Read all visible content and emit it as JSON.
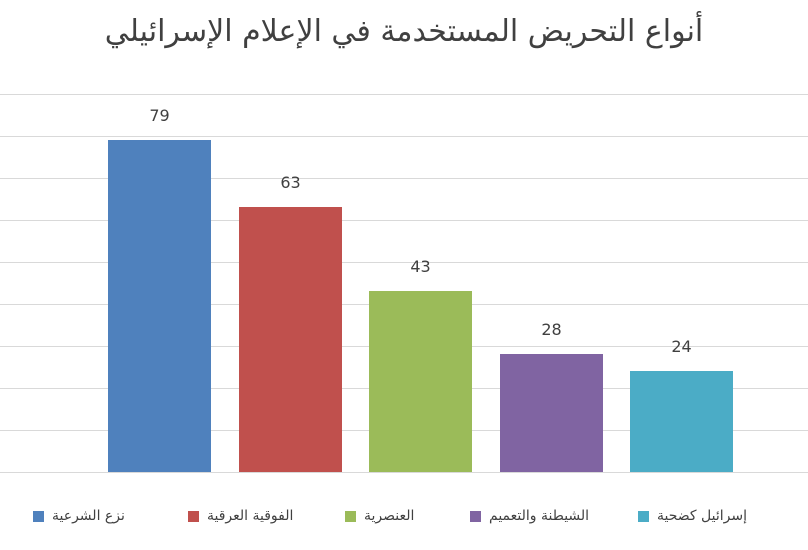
{
  "chart_data": {
    "type": "bar",
    "title": "أنواع التحريض المستخدمة في الإعلام الإسرائيلي",
    "xlabel": "",
    "ylabel": "",
    "ylim": [
      0,
      90
    ],
    "grid": true,
    "y_gridline_step": 10,
    "legend_position": "bottom",
    "categories": [
      "نزع الشرعية",
      "الفوقية العرقية",
      "العنصرية",
      "الشيطنة والتعميم",
      "إسرائيل كضحية"
    ],
    "values": [
      79,
      63,
      43,
      28,
      24
    ],
    "colors": [
      "#4f81bd",
      "#c0504d",
      "#9bbb59",
      "#8064a2",
      "#4bacc6"
    ],
    "data_labels": [
      "79",
      "63",
      "43",
      "28",
      "24"
    ]
  },
  "legend": {
    "items": [
      {
        "label": "نزع الشرعية",
        "color": "#4f81bd"
      },
      {
        "label": "الفوقية العرقية",
        "color": "#c0504d"
      },
      {
        "label": "العنصرية",
        "color": "#9bbb59"
      },
      {
        "label": "الشيطنة والتعميم",
        "color": "#8064a2"
      },
      {
        "label": "إسرائيل كضحية",
        "color": "#4bacc6"
      }
    ]
  }
}
